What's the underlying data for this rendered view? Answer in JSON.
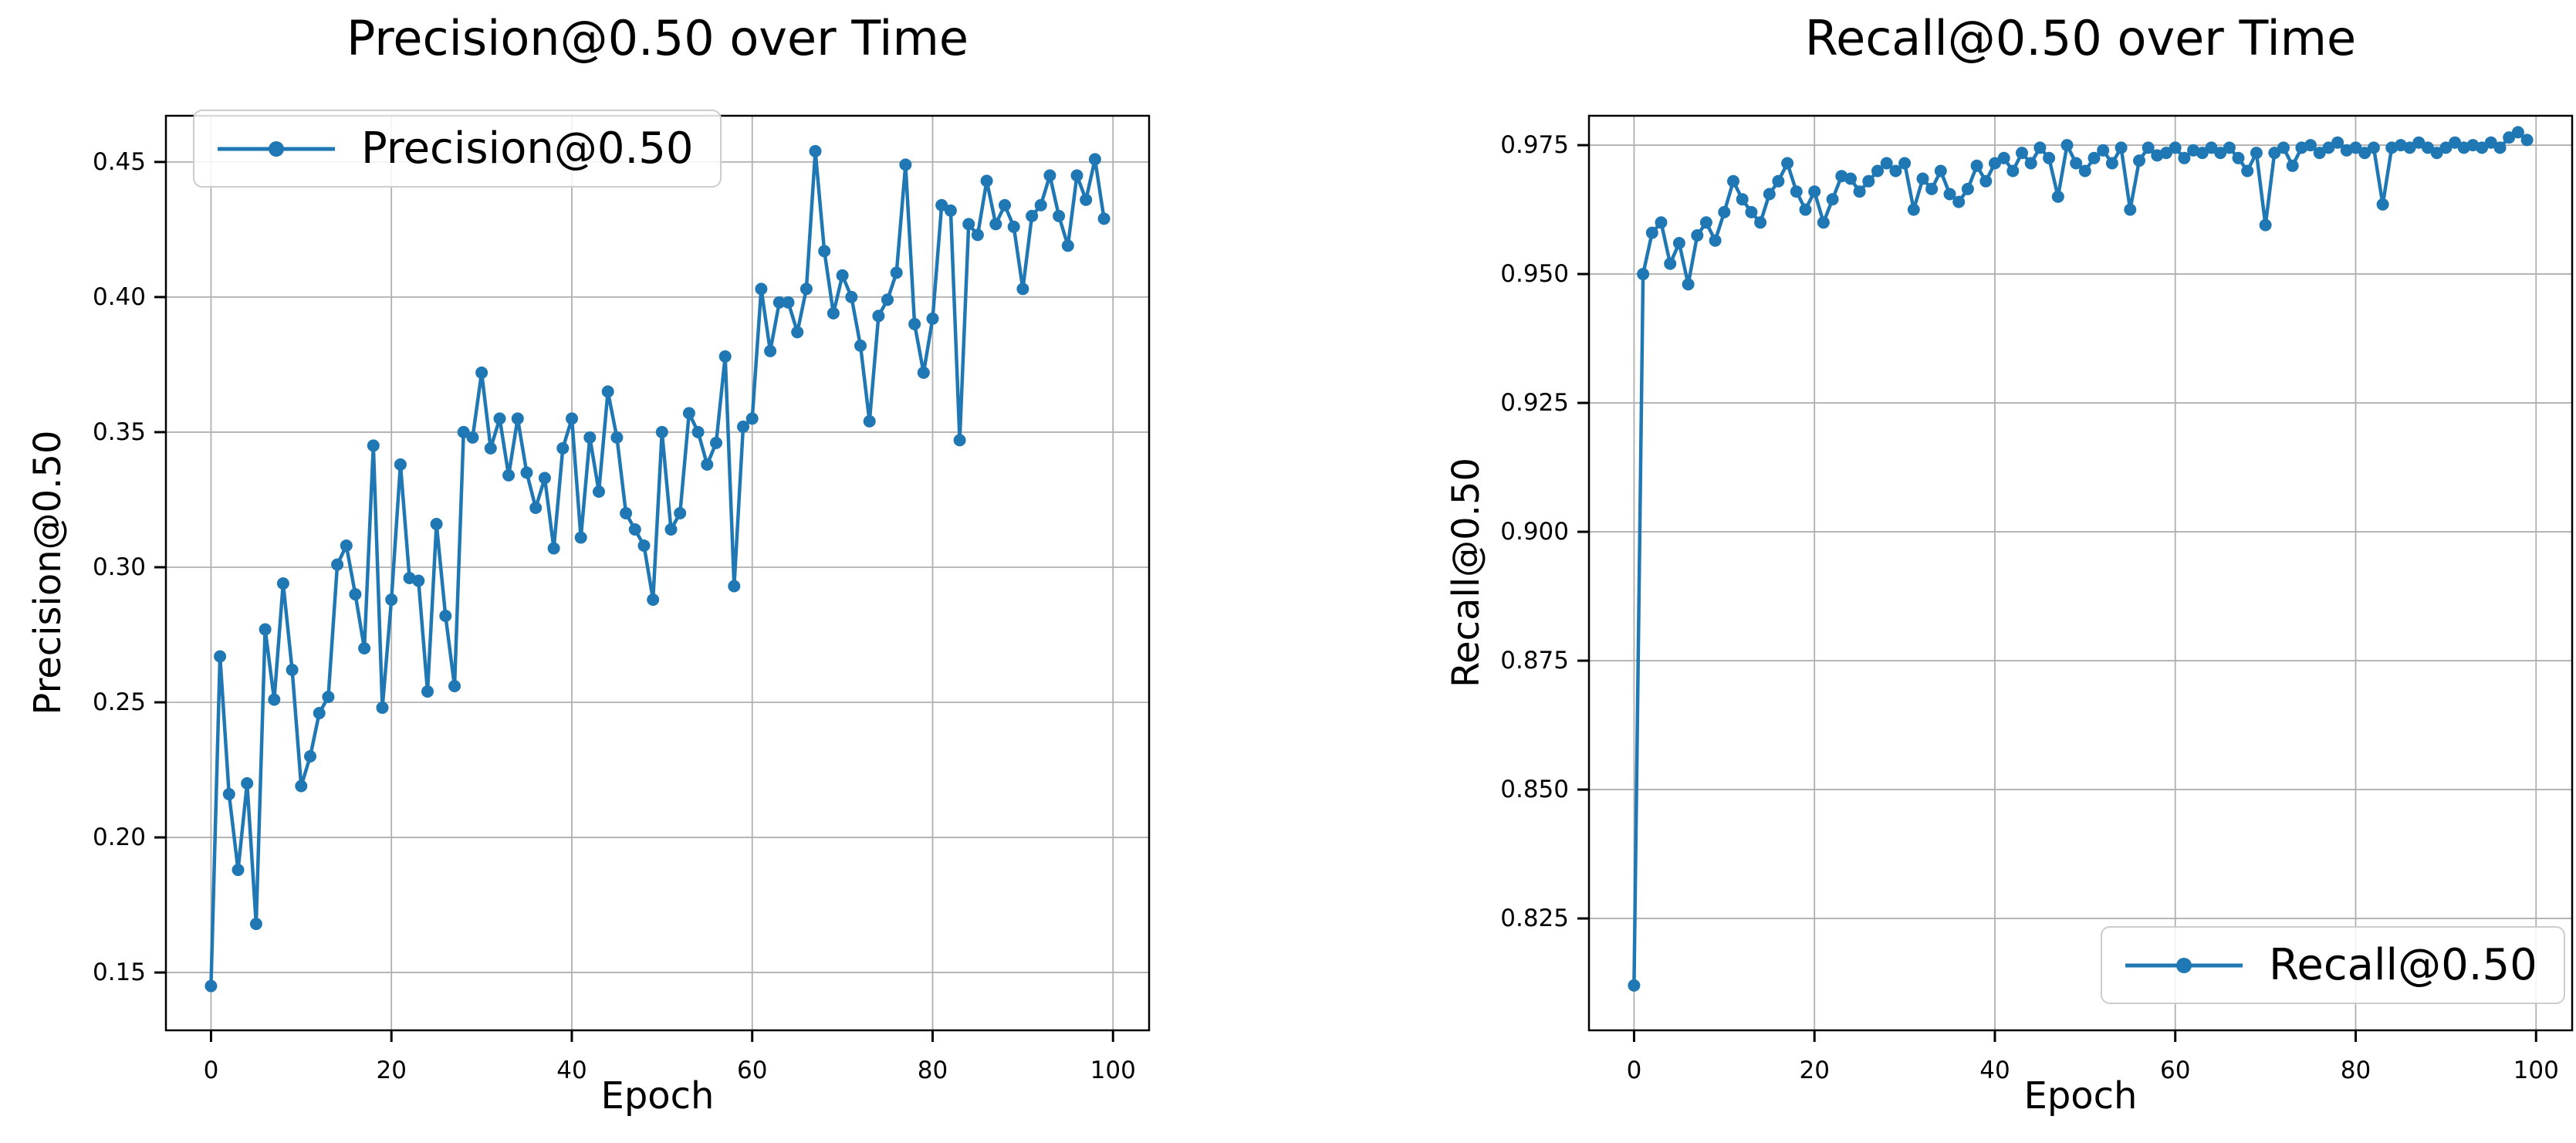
{
  "figure": {
    "background_color": "#ffffff",
    "series_color": "#1f77b4",
    "grid_color": "#b0b0b0",
    "spine_color": "#000000",
    "text_color": "#000000"
  },
  "chart_data": [
    {
      "type": "line",
      "title": "Precision@0.50 over Time",
      "xlabel": "Epoch",
      "ylabel": "Precision@0.50",
      "legend": {
        "label": "Precision@0.50",
        "position": "upper left"
      },
      "grid": true,
      "marker": "circle",
      "xlim": [
        -5,
        104
      ],
      "ylim": [
        0.1286,
        0.4671
      ],
      "x_ticks": [
        "0",
        "20",
        "40",
        "60",
        "80",
        "100"
      ],
      "x_tick_values": [
        0,
        20,
        40,
        60,
        80,
        100
      ],
      "y_ticks": [
        "0.15",
        "0.20",
        "0.25",
        "0.30",
        "0.35",
        "0.40",
        "0.45"
      ],
      "y_tick_values": [
        0.15,
        0.2,
        0.25,
        0.3,
        0.35,
        0.4,
        0.45
      ],
      "x_start": 0,
      "x_step": 1,
      "values": [
        0.145,
        0.267,
        0.216,
        0.188,
        0.22,
        0.168,
        0.277,
        0.251,
        0.294,
        0.262,
        0.219,
        0.23,
        0.246,
        0.252,
        0.301,
        0.308,
        0.29,
        0.27,
        0.345,
        0.248,
        0.288,
        0.338,
        0.296,
        0.295,
        0.254,
        0.316,
        0.282,
        0.256,
        0.35,
        0.348,
        0.372,
        0.344,
        0.355,
        0.334,
        0.355,
        0.335,
        0.322,
        0.333,
        0.307,
        0.344,
        0.355,
        0.311,
        0.348,
        0.328,
        0.365,
        0.348,
        0.32,
        0.314,
        0.308,
        0.288,
        0.35,
        0.314,
        0.32,
        0.357,
        0.35,
        0.338,
        0.346,
        0.378,
        0.293,
        0.352,
        0.355,
        0.403,
        0.38,
        0.398,
        0.398,
        0.387,
        0.403,
        0.454,
        0.417,
        0.394,
        0.408,
        0.4,
        0.382,
        0.354,
        0.393,
        0.399,
        0.409,
        0.449,
        0.39,
        0.372,
        0.392,
        0.434,
        0.432,
        0.347,
        0.427,
        0.423,
        0.443,
        0.427,
        0.434,
        0.426,
        0.403,
        0.43,
        0.434,
        0.445,
        0.43,
        0.419,
        0.445,
        0.436,
        0.451,
        0.429
      ]
    },
    {
      "type": "line",
      "title": "Recall@0.50 over Time",
      "xlabel": "Epoch",
      "ylabel": "Recall@0.50",
      "legend": {
        "label": "Recall@0.50",
        "position": "lower right"
      },
      "grid": true,
      "marker": "circle",
      "xlim": [
        -5,
        104
      ],
      "ylim": [
        0.8033,
        0.9807
      ],
      "x_ticks": [
        "0",
        "20",
        "40",
        "60",
        "80",
        "100"
      ],
      "x_tick_values": [
        0,
        20,
        40,
        60,
        80,
        100
      ],
      "y_ticks": [
        "0.825",
        "0.850",
        "0.875",
        "0.900",
        "0.925",
        "0.950",
        "0.975"
      ],
      "y_tick_values": [
        0.825,
        0.85,
        0.875,
        0.9,
        0.925,
        0.95,
        0.975
      ],
      "x_start": 0,
      "x_step": 1,
      "values": [
        0.812,
        0.95,
        0.958,
        0.96,
        0.952,
        0.956,
        0.948,
        0.9575,
        0.96,
        0.9565,
        0.962,
        0.968,
        0.9645,
        0.962,
        0.96,
        0.9655,
        0.968,
        0.9715,
        0.966,
        0.9625,
        0.966,
        0.96,
        0.9645,
        0.969,
        0.9685,
        0.966,
        0.968,
        0.97,
        0.9715,
        0.97,
        0.9715,
        0.9625,
        0.9685,
        0.9665,
        0.97,
        0.9655,
        0.964,
        0.9665,
        0.971,
        0.968,
        0.9715,
        0.9725,
        0.97,
        0.9735,
        0.9715,
        0.9745,
        0.9725,
        0.965,
        0.975,
        0.9715,
        0.97,
        0.9725,
        0.974,
        0.9715,
        0.9745,
        0.9625,
        0.972,
        0.9745,
        0.973,
        0.9735,
        0.9745,
        0.9725,
        0.974,
        0.9735,
        0.9745,
        0.9735,
        0.9745,
        0.9725,
        0.97,
        0.9735,
        0.9595,
        0.9735,
        0.9745,
        0.971,
        0.9745,
        0.975,
        0.9735,
        0.9745,
        0.9755,
        0.974,
        0.9745,
        0.9735,
        0.9745,
        0.9635,
        0.9745,
        0.975,
        0.9745,
        0.9755,
        0.9745,
        0.9735,
        0.9745,
        0.9755,
        0.9745,
        0.975,
        0.9745,
        0.9755,
        0.9745,
        0.9765,
        0.9775,
        0.976
      ]
    }
  ]
}
